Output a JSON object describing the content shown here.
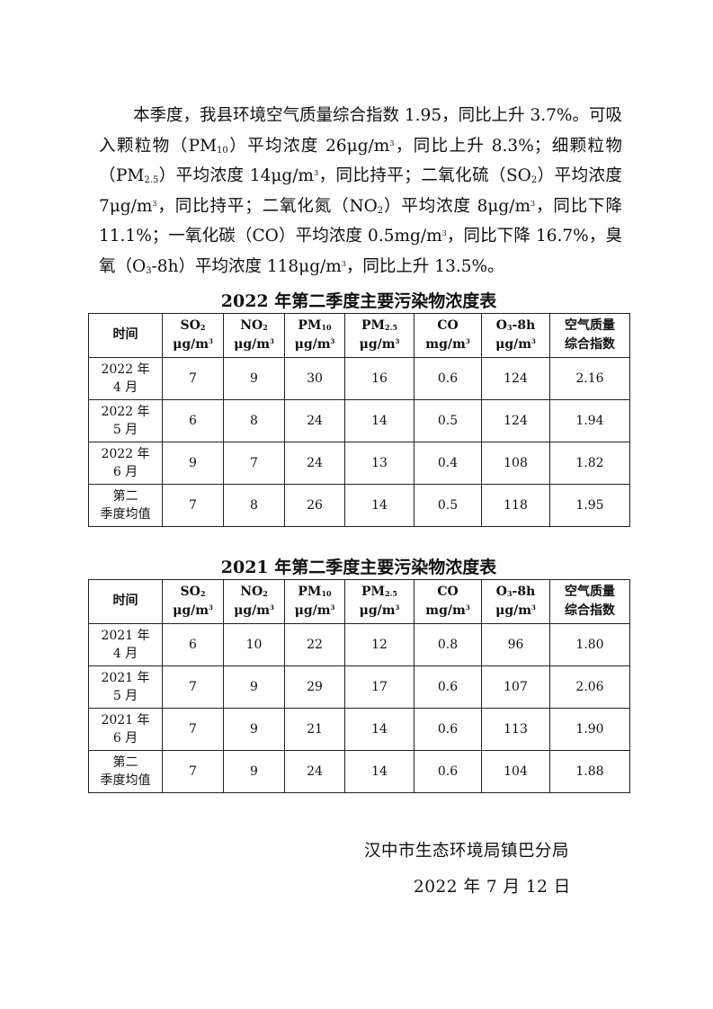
{
  "paragraph": [
    {
      "t": "本季度，我县环境空气质量综合指数 1.95，同比上升 3.7%。可吸入颗粒物（PM"
    },
    {
      "sub": "10"
    },
    {
      "t": "）平均浓度 26μg/m"
    },
    {
      "sup": "3"
    },
    {
      "t": "，同比上升 8.3%；细颗粒物（PM"
    },
    {
      "sub": "2.5"
    },
    {
      "t": "）平均浓度 14μg/m"
    },
    {
      "sup": "3"
    },
    {
      "t": "，同比持平；二氧化硫（SO"
    },
    {
      "sub": "2"
    },
    {
      "t": "）平均浓度 7μg/m"
    },
    {
      "sup": "3"
    },
    {
      "t": "，同比持平；二氧化氮（NO"
    },
    {
      "sub": "2"
    },
    {
      "t": "）平均浓度 8μg/m"
    },
    {
      "sup": "3"
    },
    {
      "t": "，同比下降 11.1%；一氧化碳（CO）平均浓度 0.5mg/m"
    },
    {
      "sup": "3"
    },
    {
      "t": "，同比下降 16.7%，臭氧（O"
    },
    {
      "sub": "3"
    },
    {
      "t": "-8h）平均浓度 118μg/m"
    },
    {
      "sup": "3"
    },
    {
      "t": "，同比上升 13.5%。"
    }
  ],
  "headers": [
    {
      "name": "时间"
    },
    {
      "name": "SO",
      "sub": "2",
      "unit": "μg/m",
      "sup": "3"
    },
    {
      "name": "NO",
      "sub": "2",
      "unit": "μg/m",
      "sup": "3"
    },
    {
      "name": "PM",
      "sub": "10",
      "unit": "μg/m",
      "sup": "3"
    },
    {
      "name": "PM",
      "sub": "2.5",
      "unit": "μg/m",
      "sup": "3"
    },
    {
      "name": "CO",
      "unit": "mg/m",
      "sup": "3"
    },
    {
      "name": "O",
      "sub": "3",
      "name2": "-8h",
      "unit": "μg/m",
      "sup": "3"
    },
    {
      "name": "空气质量",
      "unit": "综合指数"
    }
  ],
  "tables": [
    {
      "title": "2022 年第二季度主要污染物浓度表",
      "rows": [
        [
          "2022 年\n4 月",
          "7",
          "9",
          "30",
          "16",
          "0.6",
          "124",
          "2.16"
        ],
        [
          "2022 年\n5 月",
          "6",
          "8",
          "24",
          "14",
          "0.5",
          "124",
          "1.94"
        ],
        [
          "2022 年\n6 月",
          "9",
          "7",
          "24",
          "13",
          "0.4",
          "108",
          "1.82"
        ],
        [
          "第二\n季度均值",
          "7",
          "8",
          "26",
          "14",
          "0.5",
          "118",
          "1.95"
        ]
      ]
    },
    {
      "title": "2021 年第二季度主要污染物浓度表",
      "rows": [
        [
          "2021 年\n4 月",
          "6",
          "10",
          "22",
          "12",
          "0.8",
          "96",
          "1.80"
        ],
        [
          "2021 年\n5 月",
          "7",
          "9",
          "29",
          "17",
          "0.6",
          "107",
          "2.06"
        ],
        [
          "2021 年\n6 月",
          "7",
          "9",
          "21",
          "14",
          "0.6",
          "113",
          "1.90"
        ],
        [
          "第二\n季度均值",
          "7",
          "9",
          "24",
          "14",
          "0.6",
          "104",
          "1.88"
        ]
      ]
    }
  ],
  "signature": {
    "org": "汉中市生态环境局镇巴分局",
    "date": "2022 年 7 月 12 日"
  }
}
